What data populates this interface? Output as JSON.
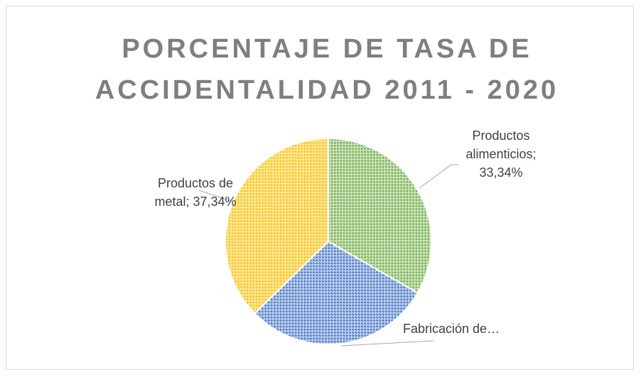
{
  "chart_data": {
    "type": "pie",
    "title": "PORCENTAJE DE TASA DE ACCIDENTALIDAD 2011 - 2020",
    "values": [
      33.34,
      29.32,
      37.34
    ],
    "value_labels": [
      "Productos alimenticios; 33,34%",
      "Fabricación de…",
      "Productos de metal; 37,34%"
    ],
    "colors": [
      "#70ad47",
      "#4472c4",
      "#ffc000"
    ]
  }
}
